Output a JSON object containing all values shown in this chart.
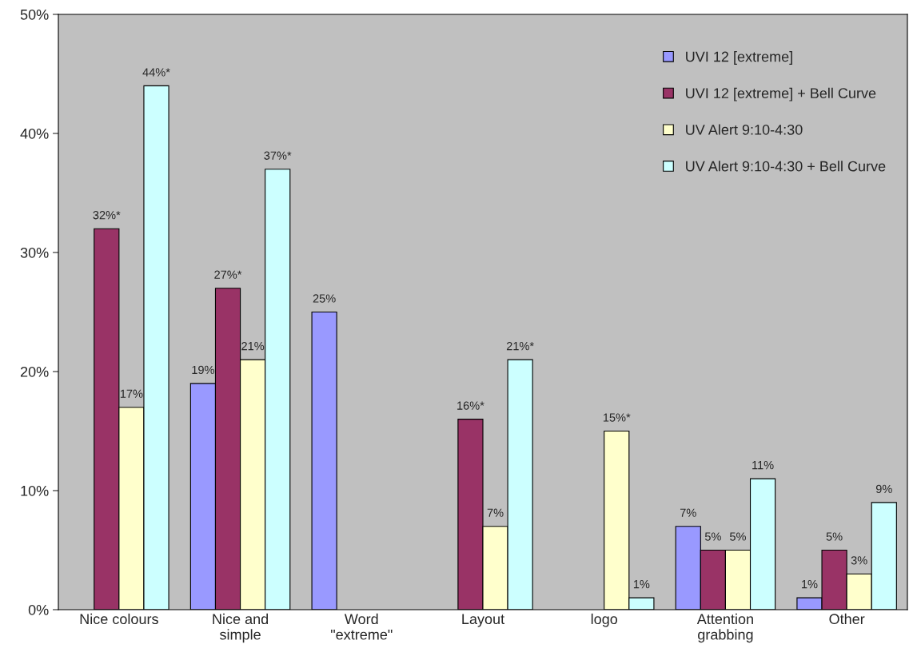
{
  "chart_data": {
    "type": "bar",
    "categories": [
      "Nice colours",
      "Nice and\nsimple",
      "Word\n\"extreme\"",
      "Layout",
      "logo",
      "Attention\ngrabbing",
      "Other"
    ],
    "series": [
      {
        "name": "UVI 12 [extreme]",
        "color": "#9999ff",
        "values": [
          null,
          19,
          25,
          null,
          null,
          7,
          1
        ],
        "value_labels": [
          null,
          "19%",
          "25%",
          null,
          null,
          "7%",
          "1%"
        ]
      },
      {
        "name": "UVI 12 [extreme] + Bell Curve",
        "color": "#993366",
        "values": [
          32,
          27,
          null,
          16,
          null,
          5,
          5
        ],
        "value_labels": [
          "32%*",
          "27%*",
          null,
          "16%*",
          null,
          "5%",
          "5%"
        ]
      },
      {
        "name": "UV Alert 9:10-4:30",
        "color": "#ffffcc",
        "values": [
          17,
          21,
          null,
          7,
          15,
          5,
          3
        ],
        "value_labels": [
          "17%",
          "21%",
          null,
          "7%",
          "15%*",
          "5%",
          "3%"
        ]
      },
      {
        "name": "UV Alert 9:10-4:30 + Bell Curve",
        "color": "#ccffff",
        "values": [
          44,
          37,
          null,
          21,
          1,
          11,
          9
        ],
        "value_labels": [
          "44%*",
          "37%*",
          null,
          "21%*",
          "1%",
          "11%",
          "9%"
        ]
      }
    ],
    "ylim": [
      0,
      50
    ],
    "yticks": [
      {
        "value": 0,
        "label": "0%"
      },
      {
        "value": 10,
        "label": "10%"
      },
      {
        "value": 20,
        "label": "20%"
      },
      {
        "value": 30,
        "label": "30%"
      },
      {
        "value": 40,
        "label": "40%"
      },
      {
        "value": 50,
        "label": "50%"
      }
    ],
    "grid": false,
    "legend": "top right"
  }
}
